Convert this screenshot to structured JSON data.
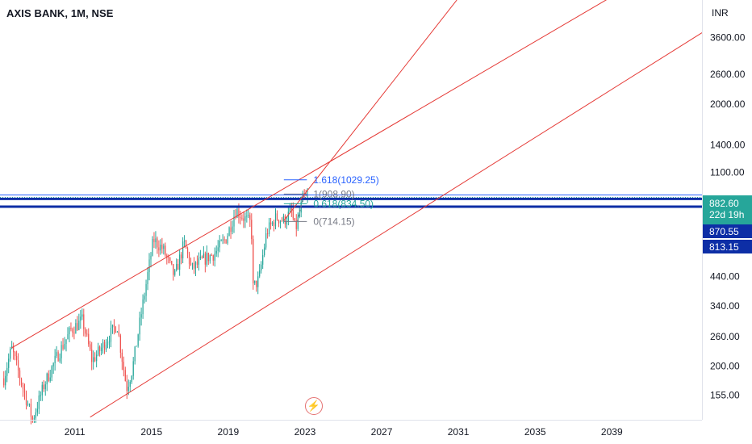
{
  "header": {
    "title": "AXIS BANK, 1M, NSE"
  },
  "colors": {
    "up": "#26a69a",
    "down": "#ef5350",
    "trend": "#e53935",
    "level_line": "#0d2ea6",
    "fib_blue": "#2962ff",
    "fib_gray": "#787b86",
    "fib_teal": "#26a69a"
  },
  "icons": {
    "flash": "lightning-bolt-icon"
  },
  "price_tags": {
    "last_price": "882.60",
    "countdown": "22d 19h",
    "level_a": "870.55",
    "level_b": "813.15"
  },
  "chart_data": {
    "type": "candlestick",
    "title": "AXIS BANK, 1M, NSE",
    "y_unit": "INR",
    "y_scale": "log",
    "ylim": [
      125,
      5000
    ],
    "xlim": [
      2007.1,
      2043.7
    ],
    "y_ticks": [
      "3600.00",
      "2600.00",
      "2000.00",
      "1400.00",
      "1100.00",
      "440.00",
      "340.00",
      "260.00",
      "200.00",
      "155.00"
    ],
    "x_ticks": [
      "2011",
      "2015",
      "2019",
      "2023",
      "2027",
      "2031",
      "2035",
      "2039"
    ],
    "horizontal_levels": [
      870.55,
      813.15
    ],
    "fib_levels": [
      {
        "label": "1.618(1029.25)",
        "value": 1029.25
      },
      {
        "label": "1(908.90)",
        "value": 908.9
      },
      {
        "label": "0.618(834.50)",
        "value": 834.5
      },
      {
        "label": "0(714.15)",
        "value": 714.15
      }
    ],
    "trend_lines": [
      {
        "name": "upper channel",
        "x1": 2007.7,
        "y1": 235,
        "x2": 2021.2,
        "y2": 890
      },
      {
        "name": "lower channel",
        "x1": 2011.8,
        "y1": 128,
        "x2": 2029.9,
        "y2": 870
      },
      {
        "name": "steep line",
        "x1": 2021.9,
        "y1": 720,
        "x2": 2023.7,
        "y2": 1060
      }
    ],
    "anchor_points": [
      {
        "date": 2007.3,
        "value": 180
      },
      {
        "date": 2007.7,
        "value": 235
      },
      {
        "date": 2008.3,
        "value": 165
      },
      {
        "date": 2008.8,
        "value": 125
      },
      {
        "date": 2009.4,
        "value": 170
      },
      {
        "date": 2010.1,
        "value": 220
      },
      {
        "date": 2010.8,
        "value": 275
      },
      {
        "date": 2011.4,
        "value": 300
      },
      {
        "date": 2011.9,
        "value": 210
      },
      {
        "date": 2012.3,
        "value": 230
      },
      {
        "date": 2012.7,
        "value": 255
      },
      {
        "date": 2013.2,
        "value": 290
      },
      {
        "date": 2013.7,
        "value": 165
      },
      {
        "date": 2014.0,
        "value": 195
      },
      {
        "date": 2014.5,
        "value": 330
      },
      {
        "date": 2015.1,
        "value": 610
      },
      {
        "date": 2015.6,
        "value": 560
      },
      {
        "date": 2016.2,
        "value": 440
      },
      {
        "date": 2016.7,
        "value": 590
      },
      {
        "date": 2017.1,
        "value": 470
      },
      {
        "date": 2017.7,
        "value": 510
      },
      {
        "date": 2018.3,
        "value": 540
      },
      {
        "date": 2018.9,
        "value": 620
      },
      {
        "date": 2019.4,
        "value": 790
      },
      {
        "date": 2019.8,
        "value": 740
      },
      {
        "date": 2020.2,
        "value": 700
      },
      {
        "date": 2020.3,
        "value": 400
      },
      {
        "date": 2020.6,
        "value": 430
      },
      {
        "date": 2021.0,
        "value": 650
      },
      {
        "date": 2021.5,
        "value": 740
      },
      {
        "date": 2021.9,
        "value": 720
      },
      {
        "date": 2022.3,
        "value": 780
      },
      {
        "date": 2022.5,
        "value": 660
      },
      {
        "date": 2022.7,
        "value": 760
      },
      {
        "date": 2022.9,
        "value": 880
      },
      {
        "date": 2023.1,
        "value": 870
      },
      {
        "date": 2023.2,
        "value": 882.6
      }
    ]
  }
}
